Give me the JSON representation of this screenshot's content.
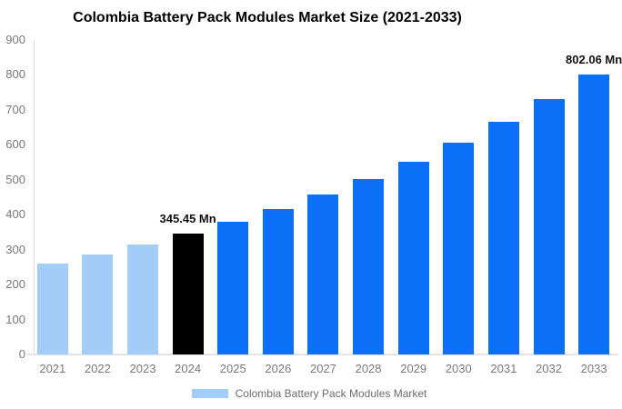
{
  "chart_data": {
    "type": "bar",
    "title": "Colombia Battery Pack Modules Market Size (2021-2033)",
    "categories": [
      "2021",
      "2022",
      "2023",
      "2024",
      "2025",
      "2026",
      "2027",
      "2028",
      "2029",
      "2030",
      "2031",
      "2032",
      "2033"
    ],
    "values": [
      261,
      287,
      315,
      345.45,
      379,
      417,
      458,
      503,
      552,
      606,
      665,
      730,
      802.06
    ],
    "bar_styles": [
      "historical",
      "historical",
      "historical",
      "current",
      "forecast",
      "forecast",
      "forecast",
      "forecast",
      "forecast",
      "forecast",
      "forecast",
      "forecast",
      "forecast"
    ],
    "data_labels": [
      {
        "index": 3,
        "text": "345.45 Mn"
      },
      {
        "index": 12,
        "text": "802.06 Mn"
      }
    ],
    "xlabel": "",
    "ylabel": "",
    "ylim": [
      0,
      900
    ],
    "ytick_step": 100,
    "grid": false,
    "legend": {
      "position": "bottom",
      "label": "Colombia Battery Pack Modules Market",
      "swatch_color": "#a2cdf9"
    }
  },
  "colors": {
    "historical": "#a2cdf9",
    "current": "#000000",
    "forecast": "#0b70f7",
    "axis_line": "#dcdcdc",
    "tick_label": "#7a7a7a",
    "data_label": "#111111",
    "legend_text": "#6d6d6d",
    "title": "#000000",
    "background": "#ffffff"
  }
}
